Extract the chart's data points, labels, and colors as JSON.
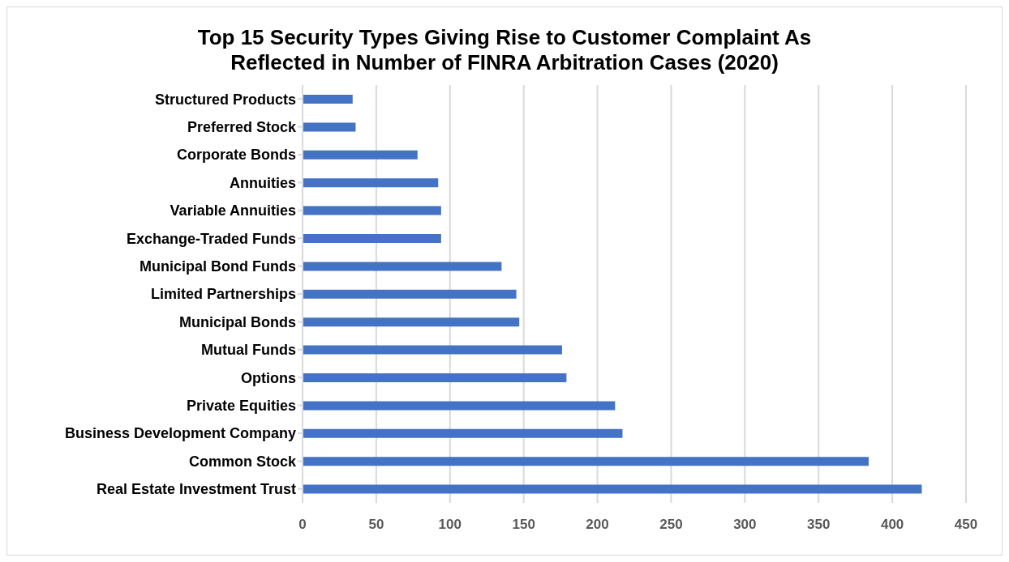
{
  "chart_data": {
    "type": "bar",
    "orientation": "horizontal",
    "title": "Top 15 Security Types Giving Rise to Customer Complaint As Reflected in Number of FINRA Arbitration Cases (2020)",
    "categories": [
      "Structured Products",
      "Preferred Stock",
      "Corporate Bonds",
      "Annuities",
      "Variable Annuities",
      "Exchange-Traded Funds",
      "Municipal Bond Funds",
      "Limited Partnerships",
      "Municipal Bonds",
      "Mutual Funds",
      "Options",
      "Private Equities",
      "Business Development Company",
      "Common Stock",
      "Real Estate Investment Trust"
    ],
    "values": [
      34,
      36,
      78,
      92,
      94,
      94,
      135,
      145,
      147,
      176,
      179,
      212,
      217,
      384,
      420
    ],
    "color": "#4472c4",
    "xlim": [
      0,
      450
    ],
    "xticks": [
      0,
      50,
      100,
      150,
      200,
      250,
      300,
      350,
      400,
      450
    ],
    "grid": "x"
  }
}
